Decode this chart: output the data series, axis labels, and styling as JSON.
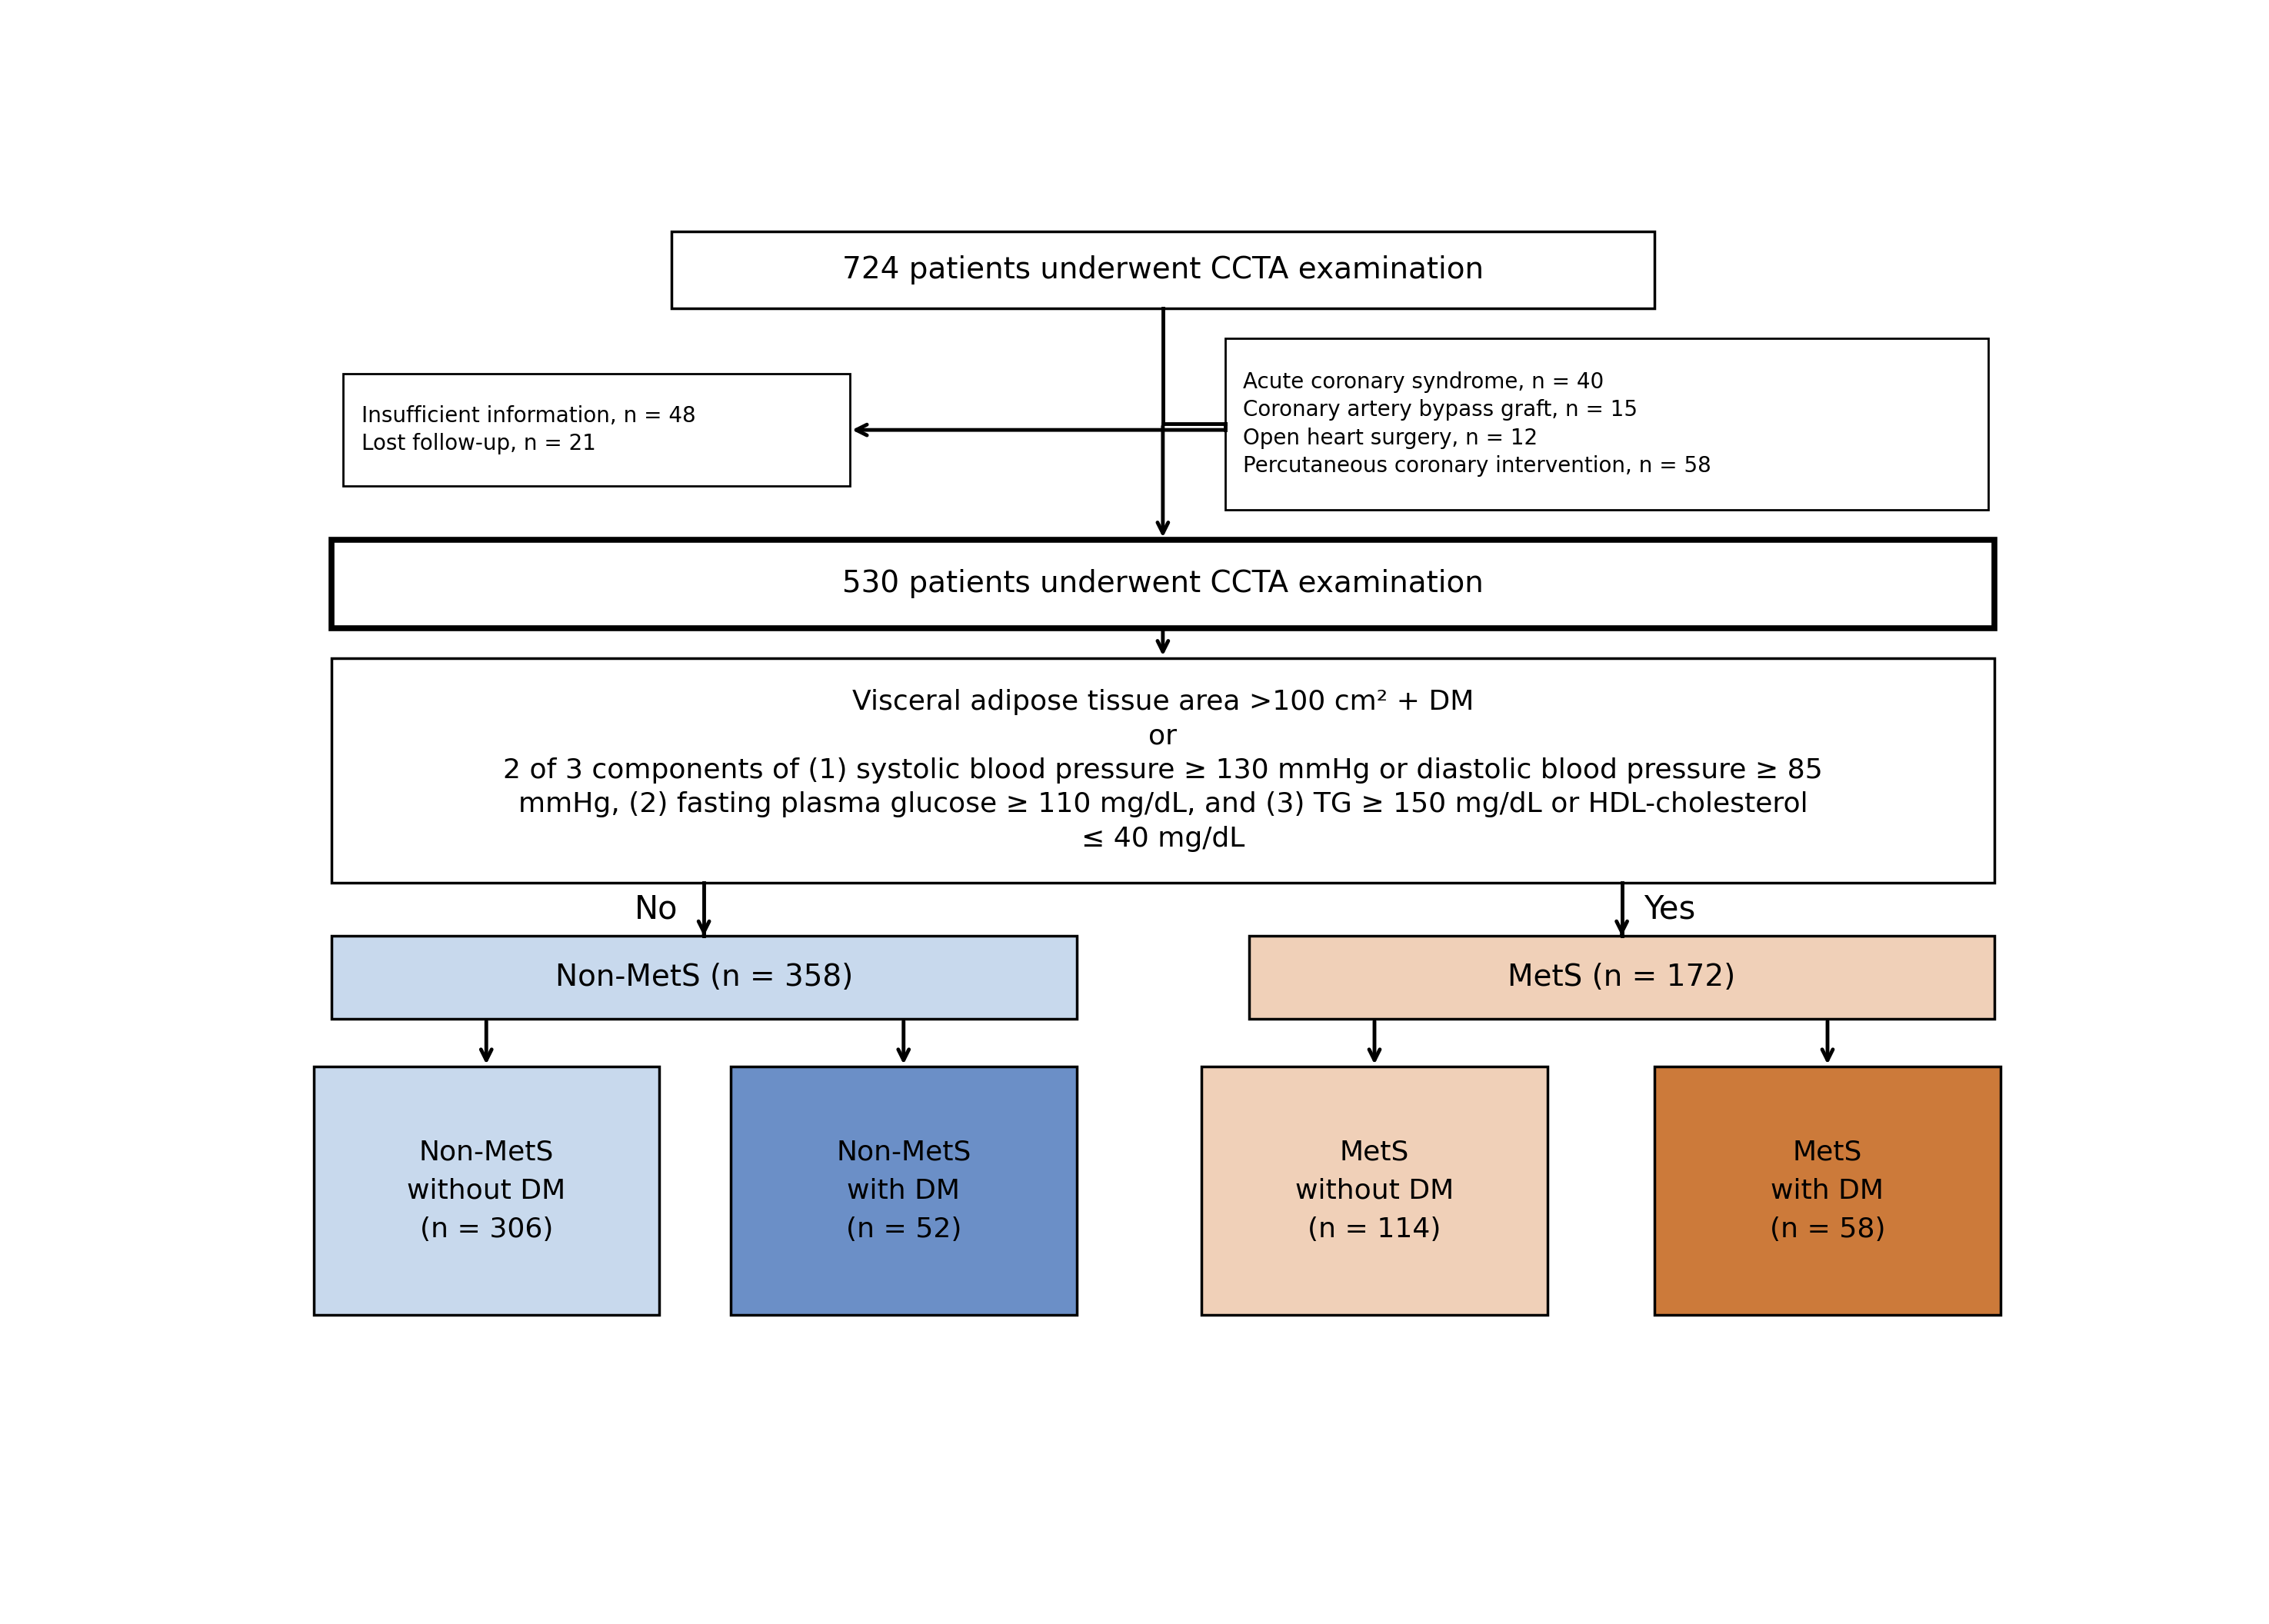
{
  "bg_color": "#ffffff",
  "box_top_text": "724 patients underwent CCTA examination",
  "box_530_text": "530 patients underwent CCTA examination",
  "box_excl_right_lines": [
    "Acute coronary syndrome, n = 40",
    "Coronary artery bypass graft, n = 15",
    "Open heart surgery, n = 12",
    "Percutaneous coronary intervention, n = 58"
  ],
  "box_excl_left_lines": [
    "Insufficient information, n = 48",
    "Lost follow-up, n = 21"
  ],
  "box_criteria_lines": [
    "Visceral adipose tissue area >100 cm² + DM",
    "or",
    "2 of 3 components of (1) systolic blood pressure ≥ 130 mmHg or diastolic blood pressure ≥ 85",
    "mmHg, (2) fasting plasma glucose ≥ 110 mg/dL, and (3) TG ≥ 150 mg/dL or HDL-cholesterol",
    "≤ 40 mg/dL"
  ],
  "label_no": "No",
  "label_yes": "Yes",
  "box_nonmets_text": "Non-MetS (n = 358)",
  "box_mets_text": "MetS (n = 172)",
  "box_nonmets_nodm_lines": [
    "Non-MetS",
    "without DM",
    "(n = 306)"
  ],
  "box_nonmets_dm_lines": [
    "Non-MetS",
    "with DM",
    "(n = 52)"
  ],
  "box_mets_nodm_lines": [
    "MetS",
    "without DM",
    "(n = 114)"
  ],
  "box_mets_dm_lines": [
    "MetS",
    "with DM",
    "(n = 58)"
  ],
  "color_nonmets_light": "#c8d9ed",
  "color_nonmets_dark": "#6b8fc7",
  "color_mets_light": "#f0d0b8",
  "color_mets_dark": "#cc7a3a",
  "color_white": "#ffffff",
  "color_black": "#000000",
  "arrow_color": "#000000",
  "box_border_color": "#000000",
  "font_main": 28,
  "font_excl": 20,
  "font_criteria": 26,
  "font_level3": 28,
  "font_level4": 26,
  "font_label": 30
}
